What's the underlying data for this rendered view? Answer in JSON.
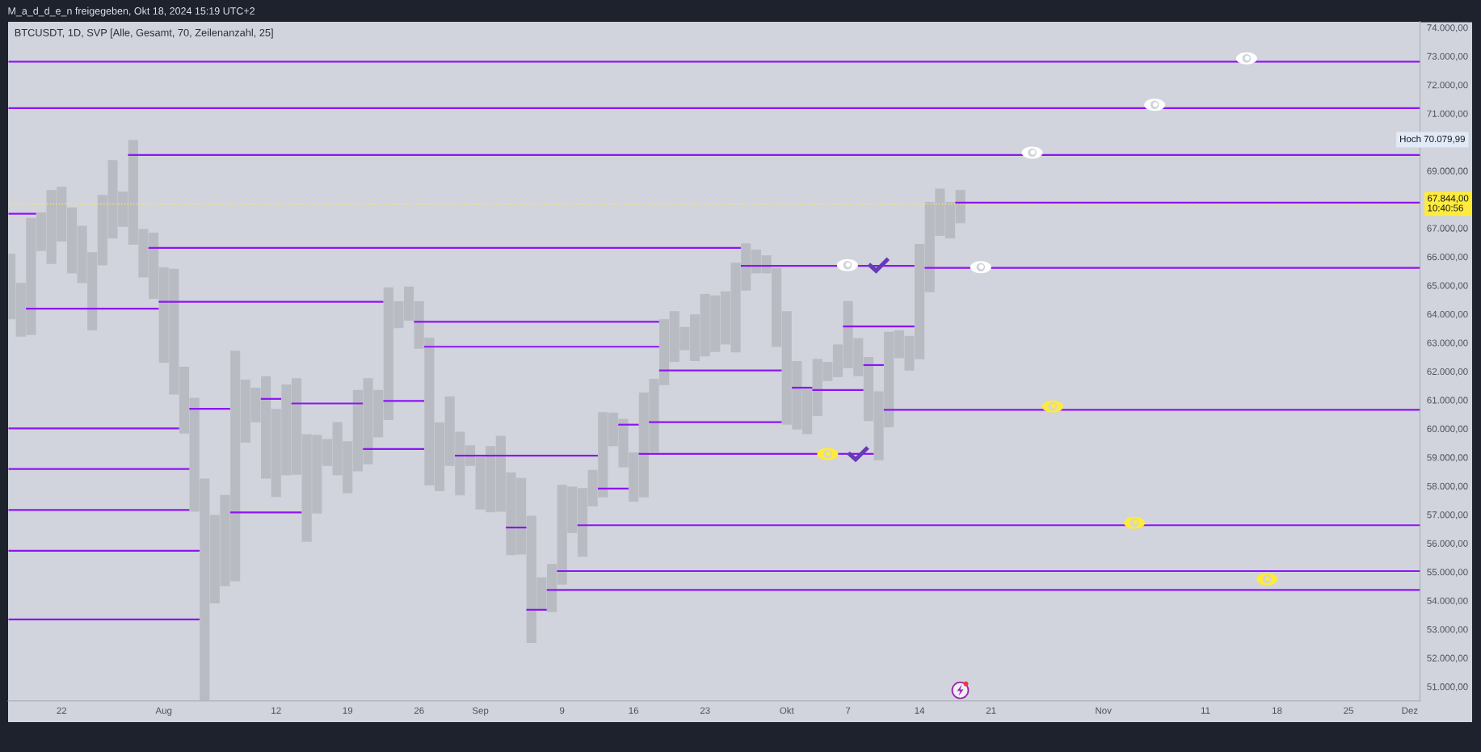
{
  "chart_data": {
    "type": "bar",
    "title": "M_a_d_d_e_n freigegeben, Okt 18, 2024 15:19 UTC+2",
    "subtitle": "BTCUSDT, 1D, SVP [Alle, Gesamt, 70, Zeilenanzahl, 25]",
    "x": [
      "2024-07-17",
      "2024-07-18",
      "2024-07-19",
      "2024-07-20",
      "2024-07-21",
      "2024-07-22",
      "2024-07-23",
      "2024-07-24",
      "2024-07-25",
      "2024-07-26",
      "2024-07-27",
      "2024-07-28",
      "2024-07-29",
      "2024-07-30",
      "2024-07-31",
      "2024-08-01",
      "2024-08-02",
      "2024-08-03",
      "2024-08-04",
      "2024-08-05",
      "2024-08-06",
      "2024-08-07",
      "2024-08-08",
      "2024-08-09",
      "2024-08-10",
      "2024-08-11",
      "2024-08-12",
      "2024-08-13",
      "2024-08-14",
      "2024-08-15",
      "2024-08-16",
      "2024-08-17",
      "2024-08-18",
      "2024-08-19",
      "2024-08-20",
      "2024-08-21",
      "2024-08-22",
      "2024-08-23",
      "2024-08-24",
      "2024-08-25",
      "2024-08-26",
      "2024-08-27",
      "2024-08-28",
      "2024-08-29",
      "2024-08-30",
      "2024-08-31",
      "2024-09-01",
      "2024-09-02",
      "2024-09-03",
      "2024-09-04",
      "2024-09-05",
      "2024-09-06",
      "2024-09-07",
      "2024-09-08",
      "2024-09-09",
      "2024-09-10",
      "2024-09-11",
      "2024-09-12",
      "2024-09-13",
      "2024-09-14",
      "2024-09-15",
      "2024-09-16",
      "2024-09-17",
      "2024-09-18",
      "2024-09-19",
      "2024-09-20",
      "2024-09-21",
      "2024-09-22",
      "2024-09-23",
      "2024-09-24",
      "2024-09-25",
      "2024-09-26",
      "2024-09-27",
      "2024-09-28",
      "2024-09-29",
      "2024-09-30",
      "2024-10-01",
      "2024-10-02",
      "2024-10-03",
      "2024-10-04",
      "2024-10-05",
      "2024-10-06",
      "2024-10-07",
      "2024-10-08",
      "2024-10-09",
      "2024-10-10",
      "2024-10-11",
      "2024-10-12",
      "2024-10-13",
      "2024-10-14",
      "2024-10-15",
      "2024-10-16",
      "2024-10-17",
      "2024-10-18"
    ],
    "series": [
      {
        "color": "#b9bbc3",
        "values": [
          2280,
          1880,
          4090,
          1350,
          2580,
          1910,
          2300,
          2000,
          2730,
          2460,
          2730,
          1220,
          3660,
          1690,
          2310,
          3330,
          4390,
          2330,
          3980,
          7760,
          3090,
          3190,
          8050,
          2200,
          1210,
          3570,
          3070,
          3170,
          3370,
          3760,
          2740,
          940,
          1860,
          1810,
          2840,
          3000,
          1650,
          4630,
          940,
          1190,
          1660,
          5160,
          2400,
          2430,
          2220,
          720,
          1830,
          2310,
          2650,
          2890,
          2670,
          4440,
          1170,
          1680,
          3480,
          1620,
          2400,
          1270,
          2980,
          1170,
          1690,
          1720,
          3660,
          2570,
          2300,
          1770,
          810,
          1630,
          2180,
          1970,
          1850,
          3130,
          1650,
          830,
          630,
          2760,
          3960,
          2390,
          1570,
          2000,
          670,
          1140,
          2340,
          1330,
          2230,
          2400,
          3330,
          970,
          1210,
          4030,
          3150,
          1650,
          1270,
          1160
        ],
        "base": [
          63820,
          63210,
          63270,
          66200,
          65750,
          66530,
          65420,
          65080,
          63430,
          65700,
          66640,
          67050,
          66420,
          65280,
          64530,
          62300,
          61190,
          59830,
          57100,
          50500,
          53900,
          54500,
          54670,
          59510,
          60220,
          58260,
          57620,
          58370,
          58390,
          56050,
          57040,
          58700,
          58370,
          57750,
          58510,
          58760,
          59700,
          60300,
          63510,
          63770,
          62790,
          58020,
          57820,
          58700,
          57670,
          58700,
          57180,
          57080,
          57100,
          55590,
          55610,
          52520,
          53640,
          53600,
          54560,
          56360,
          55530,
          57290,
          57600,
          59390,
          58650,
          57450,
          57600,
          59170,
          61520,
          62330,
          62740,
          62360,
          62520,
          62680,
          62940,
          62660,
          64820,
          65420,
          65420,
          62850,
          60140,
          59970,
          59810,
          60440,
          61660,
          61800,
          62110,
          61830,
          60270,
          58900,
          60050,
          62460,
          62030,
          62420,
          64760,
          66730,
          66640,
          67170
        ]
      },
      {
        "type": "line",
        "color": "#8e14f5",
        "x": [
          "2024-07-16T18:43",
          "2024-12-02T00:00"
        ],
        "values": [
          72810,
          72810
        ]
      },
      {
        "type": "line",
        "color": "#8e14f5",
        "x": [
          "2024-07-16T18:43",
          "2024-12-02T00:00"
        ],
        "values": [
          71190,
          71190
        ]
      },
      {
        "type": "line",
        "color": "#8e14f5",
        "x": [
          "2024-07-28T12:00",
          "2024-12-02T00:00"
        ],
        "values": [
          69550,
          69550
        ]
      },
      {
        "type": "line",
        "color": "#8e14f5",
        "x": [
          "2024-07-16T18:43",
          "2024-07-19T12:00"
        ],
        "values": [
          67500,
          67500
        ]
      },
      {
        "type": "line",
        "color": "#8e14f5",
        "x": [
          "2024-07-30T12:00",
          "2024-09-26T12:00"
        ],
        "values": [
          66310,
          66310
        ]
      },
      {
        "type": "line",
        "color": "#8e14f5",
        "x": [
          "2024-07-18T12:00",
          "2024-07-31T12:00"
        ],
        "values": [
          64190,
          64190
        ]
      },
      {
        "type": "line",
        "color": "#8e14f5",
        "x": [
          "2024-07-31T12:00",
          "2024-08-22T12:00"
        ],
        "values": [
          64430,
          64430
        ]
      },
      {
        "type": "line",
        "color": "#8e14f5",
        "x": [
          "2024-08-25T12:00",
          "2024-09-18T12:00"
        ],
        "values": [
          63730,
          63730
        ]
      },
      {
        "type": "line",
        "color": "#8e14f5",
        "x": [
          "2024-08-26T12:00",
          "2024-09-18T12:00"
        ],
        "values": [
          62860,
          62860
        ]
      },
      {
        "type": "line",
        "color": "#8e14f5",
        "x": [
          "2024-07-16T18:43",
          "2024-08-02T12:00"
        ],
        "values": [
          60010,
          60010
        ]
      },
      {
        "type": "line",
        "color": "#8e14f5",
        "x": [
          "2024-08-03T12:00",
          "2024-08-07T12:00"
        ],
        "values": [
          60690,
          60690
        ]
      },
      {
        "type": "line",
        "color": "#8e14f5",
        "x": [
          "2024-07-16T18:43",
          "2024-08-03T12:00"
        ],
        "values": [
          58590,
          58590
        ]
      },
      {
        "type": "line",
        "color": "#8e14f5",
        "x": [
          "2024-07-16T18:43",
          "2024-08-03T12:00"
        ],
        "values": [
          57160,
          57160
        ]
      },
      {
        "type": "line",
        "color": "#8e14f5",
        "x": [
          "2024-07-16T18:43",
          "2024-08-04T12:00"
        ],
        "values": [
          55740,
          55740
        ]
      },
      {
        "type": "line",
        "color": "#8e14f5",
        "x": [
          "2024-07-16T18:43",
          "2024-08-04T12:00"
        ],
        "values": [
          53340,
          53340
        ]
      },
      {
        "type": "line",
        "color": "#8e14f5",
        "x": [
          "2024-08-07T12:00",
          "2024-08-14T12:00"
        ],
        "values": [
          57080,
          57080
        ]
      },
      {
        "type": "line",
        "color": "#8e14f5",
        "x": [
          "2024-08-10T12:00",
          "2024-08-12T12:00"
        ],
        "values": [
          61040,
          61040
        ]
      },
      {
        "type": "line",
        "color": "#8e14f5",
        "x": [
          "2024-08-13T12:00",
          "2024-08-20T12:00"
        ],
        "values": [
          60880,
          60880
        ]
      },
      {
        "type": "line",
        "color": "#8e14f5",
        "x": [
          "2024-08-20T12:00",
          "2024-08-26T12:00"
        ],
        "values": [
          59290,
          59290
        ]
      },
      {
        "type": "line",
        "color": "#8e14f5",
        "x": [
          "2024-08-22T12:00",
          "2024-08-26T12:00"
        ],
        "values": [
          60970,
          60970
        ]
      },
      {
        "type": "line",
        "color": "#8e14f5",
        "x": [
          "2024-08-29T12:00",
          "2024-09-12T12:00"
        ],
        "values": [
          59060,
          59060
        ]
      },
      {
        "type": "line",
        "color": "#8e14f5",
        "x": [
          "2024-09-03T12:00",
          "2024-09-05T12:00"
        ],
        "values": [
          56550,
          56550
        ]
      },
      {
        "type": "line",
        "color": "#8e14f5",
        "x": [
          "2024-09-10T12:00",
          "2024-12-02T00:00"
        ],
        "values": [
          56630,
          56630
        ]
      },
      {
        "type": "line",
        "color": "#8e14f5",
        "x": [
          "2024-09-08T12:00",
          "2024-12-02T00:00"
        ],
        "values": [
          55030,
          55030
        ]
      },
      {
        "type": "line",
        "color": "#8e14f5",
        "x": [
          "2024-09-07T12:00",
          "2024-12-02T00:00"
        ],
        "values": [
          54370,
          54370
        ]
      },
      {
        "type": "line",
        "color": "#8e14f5",
        "x": [
          "2024-09-05T12:00",
          "2024-09-07T12:00"
        ],
        "values": [
          53680,
          53680
        ]
      },
      {
        "type": "line",
        "color": "#8e14f5",
        "x": [
          "2024-09-12T12:00",
          "2024-09-15T12:00"
        ],
        "values": [
          57910,
          57910
        ]
      },
      {
        "type": "line",
        "color": "#8e14f5",
        "x": [
          "2024-09-14T12:00",
          "2024-09-16T12:00"
        ],
        "values": [
          60140,
          60140
        ]
      },
      {
        "type": "line",
        "color": "#8e14f5",
        "x": [
          "2024-09-17T12:00",
          "2024-09-30T12:00"
        ],
        "values": [
          60230,
          60230
        ]
      },
      {
        "type": "line",
        "color": "#8e14f5",
        "x": [
          "2024-09-16T12:00",
          "2024-10-09T12:00"
        ],
        "values": [
          59120,
          59120
        ]
      },
      {
        "type": "line",
        "color": "#8e14f5",
        "x": [
          "2024-10-01T12:00",
          "2024-10-03T12:00"
        ],
        "values": [
          61430,
          61430
        ]
      },
      {
        "type": "line",
        "color": "#8e14f5",
        "x": [
          "2024-10-03T12:00",
          "2024-10-08T12:00"
        ],
        "values": [
          61350,
          61350
        ]
      },
      {
        "type": "line",
        "color": "#8e14f5",
        "x": [
          "2024-10-10T12:00",
          "2024-12-02T00:00"
        ],
        "values": [
          60660,
          60660
        ]
      },
      {
        "type": "line",
        "color": "#8e14f5",
        "x": [
          "2024-09-26T12:00",
          "2024-10-13T12:00"
        ],
        "values": [
          65680,
          65680
        ]
      },
      {
        "type": "line",
        "color": "#8e14f5",
        "x": [
          "2024-10-14T12:00",
          "2024-12-02T00:00"
        ],
        "values": [
          65610,
          65610
        ]
      },
      {
        "type": "line",
        "color": "#8e14f5",
        "x": [
          "2024-10-06T12:00",
          "2024-10-13T12:00"
        ],
        "values": [
          63570,
          63570
        ]
      },
      {
        "type": "line",
        "color": "#8e14f5",
        "x": [
          "2024-10-08T12:00",
          "2024-10-10T12:00"
        ],
        "values": [
          62220,
          62220
        ]
      },
      {
        "type": "line",
        "color": "#8e14f5",
        "x": [
          "2024-09-18T12:00",
          "2024-09-30T12:00"
        ],
        "values": [
          62030,
          62030
        ]
      },
      {
        "type": "line",
        "color": "#8e14f5",
        "x": [
          "2024-10-17T12:00",
          "2024-12-02T00:00"
        ],
        "values": [
          67890,
          67890
        ]
      }
    ],
    "xlim": [
      "2024-07-16T18:43",
      "2024-12-02T00:00"
    ],
    "ylim": [
      50500,
      74200
    ],
    "xticks": [
      {
        "value": "2024-07-22",
        "label": "22"
      },
      {
        "value": "2024-08-01",
        "label": "Aug"
      },
      {
        "value": "2024-08-12",
        "label": "12"
      },
      {
        "value": "2024-08-19",
        "label": "19"
      },
      {
        "value": "2024-08-26",
        "label": "26"
      },
      {
        "value": "2024-09-01",
        "label": "Sep"
      },
      {
        "value": "2024-09-09",
        "label": "9"
      },
      {
        "value": "2024-09-16",
        "label": "16"
      },
      {
        "value": "2024-09-23",
        "label": "23"
      },
      {
        "value": "2024-10-01",
        "label": "Okt"
      },
      {
        "value": "2024-10-07",
        "label": "7"
      },
      {
        "value": "2024-10-14",
        "label": "14"
      },
      {
        "value": "2024-10-21",
        "label": "21"
      },
      {
        "value": "2024-11-01",
        "label": "Nov"
      },
      {
        "value": "2024-11-11",
        "label": "11"
      },
      {
        "value": "2024-11-18",
        "label": "18"
      },
      {
        "value": "2024-11-25",
        "label": "25"
      },
      {
        "value": "2024-12-01",
        "label": "Dez"
      }
    ],
    "yticks": [
      {
        "value": 51000,
        "label": "51.000,00"
      },
      {
        "value": 52000,
        "label": "52.000,00"
      },
      {
        "value": 53000,
        "label": "53.000,00"
      },
      {
        "value": 54000,
        "label": "54.000,00"
      },
      {
        "value": 55000,
        "label": "55.000,00"
      },
      {
        "value": 56000,
        "label": "56.000,00"
      },
      {
        "value": 57000,
        "label": "57.000,00"
      },
      {
        "value": 58000,
        "label": "58.000,00"
      },
      {
        "value": 59000,
        "label": "59.000,00"
      },
      {
        "value": 60000,
        "label": "60.000,00"
      },
      {
        "value": 61000,
        "label": "61.000,00"
      },
      {
        "value": 62000,
        "label": "62.000,00"
      },
      {
        "value": 63000,
        "label": "63.000,00"
      },
      {
        "value": 64000,
        "label": "64.000,00"
      },
      {
        "value": 65000,
        "label": "65.000,00"
      },
      {
        "value": 66000,
        "label": "66.000,00"
      },
      {
        "value": 67000,
        "label": "67.000,00"
      },
      {
        "value": 69000,
        "label": "69.000,00"
      },
      {
        "value": 71000,
        "label": "71.000,00"
      },
      {
        "value": 72000,
        "label": "72.000,00"
      },
      {
        "value": 73000,
        "label": "73.000,00"
      },
      {
        "value": 74000,
        "label": "74.000,00"
      }
    ],
    "ref_lines": [
      {
        "axis": "y",
        "value": 67844,
        "label": "67.844,00\n10:40:56",
        "color": "#ffeb3b",
        "line_style": "dotted"
      }
    ],
    "annotations": [
      "Hoch 70.079,99"
    ]
  }
}
